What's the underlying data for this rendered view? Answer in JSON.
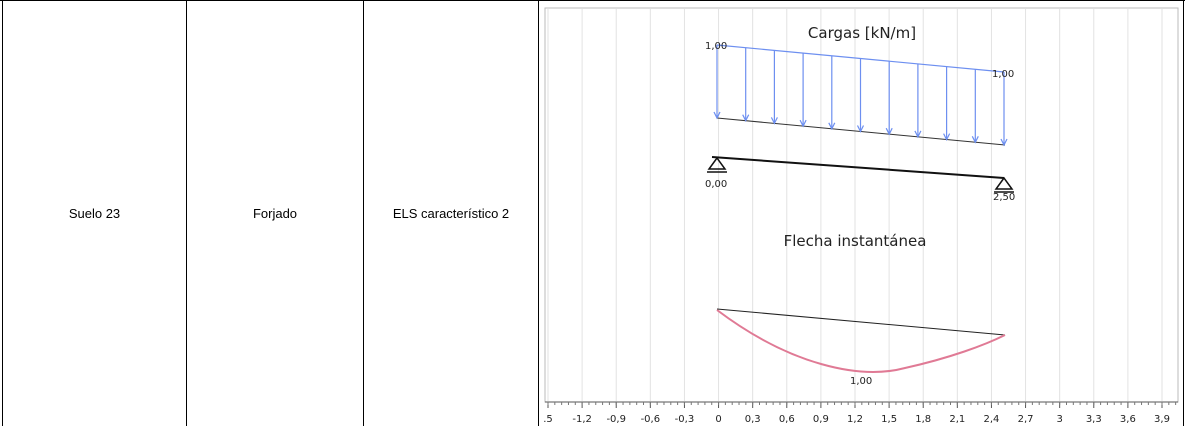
{
  "table": {
    "rows": [
      [
        "Suelo 23",
        "Forjado",
        "ELS característico 2"
      ]
    ]
  },
  "diagram": {
    "loads_title": "Cargas [kN/m]",
    "load_left": "1,00",
    "load_right": "1,00",
    "support_left": "0,00",
    "support_right": "2,50",
    "deflection_title": "Flecha instantánea",
    "deflection_label": "1,00",
    "axis_labels": [
      ".5",
      "-1,2",
      "-0,9",
      "-0,6",
      "-0,3",
      "0",
      "0,3",
      "0,6",
      "0,9",
      "1,2",
      "1,5",
      "1,8",
      "2,1",
      "2,4",
      "2,7",
      "3",
      "3,3",
      "3,6",
      "3,9"
    ]
  }
}
